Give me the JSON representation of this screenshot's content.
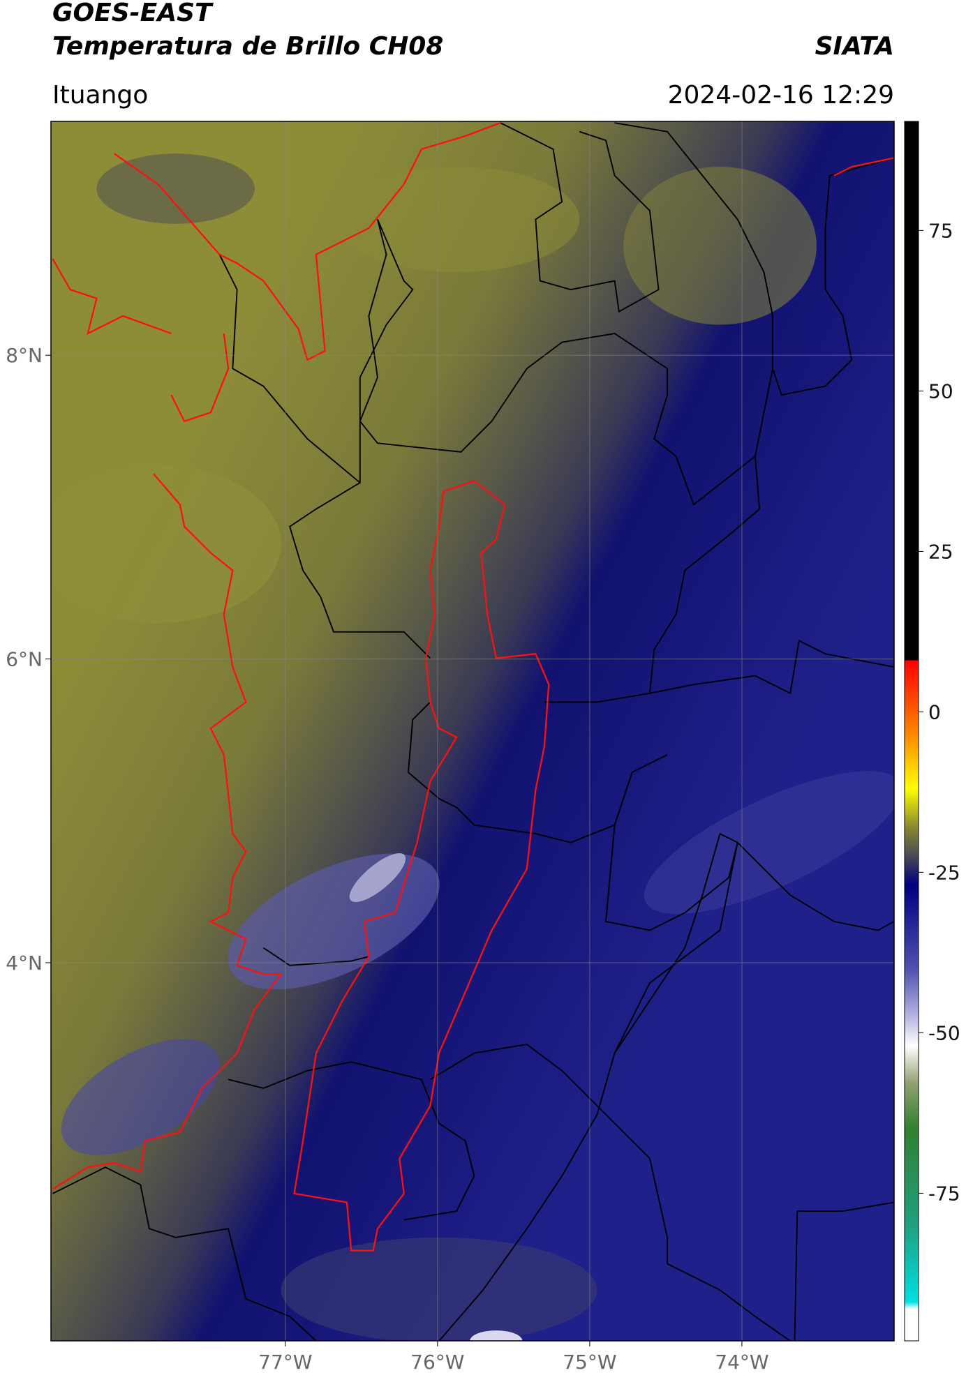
{
  "header": {
    "title": "GOES-EAST",
    "subtitle": "Temperatura de Brillo CH08",
    "source": "SIATA",
    "location": "Ituango",
    "timestamp": "2024-02-16 12:29"
  },
  "map": {
    "xlim": [
      -78.54,
      -73.0
    ],
    "ylim": [
      1.51,
      9.54
    ],
    "xticks": [
      {
        "value": -77,
        "label": "77°W"
      },
      {
        "value": -76,
        "label": "76°W"
      },
      {
        "value": -75,
        "label": "75°W"
      },
      {
        "value": -74,
        "label": "74°W"
      }
    ],
    "yticks": [
      {
        "value": 4,
        "label": "4°N"
      },
      {
        "value": 6,
        "label": "6°N"
      },
      {
        "value": 8,
        "label": "8°N"
      }
    ],
    "grid": true
  },
  "colorbar": {
    "lim": [
      -98,
      92
    ],
    "ticks": [
      -75,
      -50,
      -25,
      0,
      25,
      50,
      75
    ]
  }
}
